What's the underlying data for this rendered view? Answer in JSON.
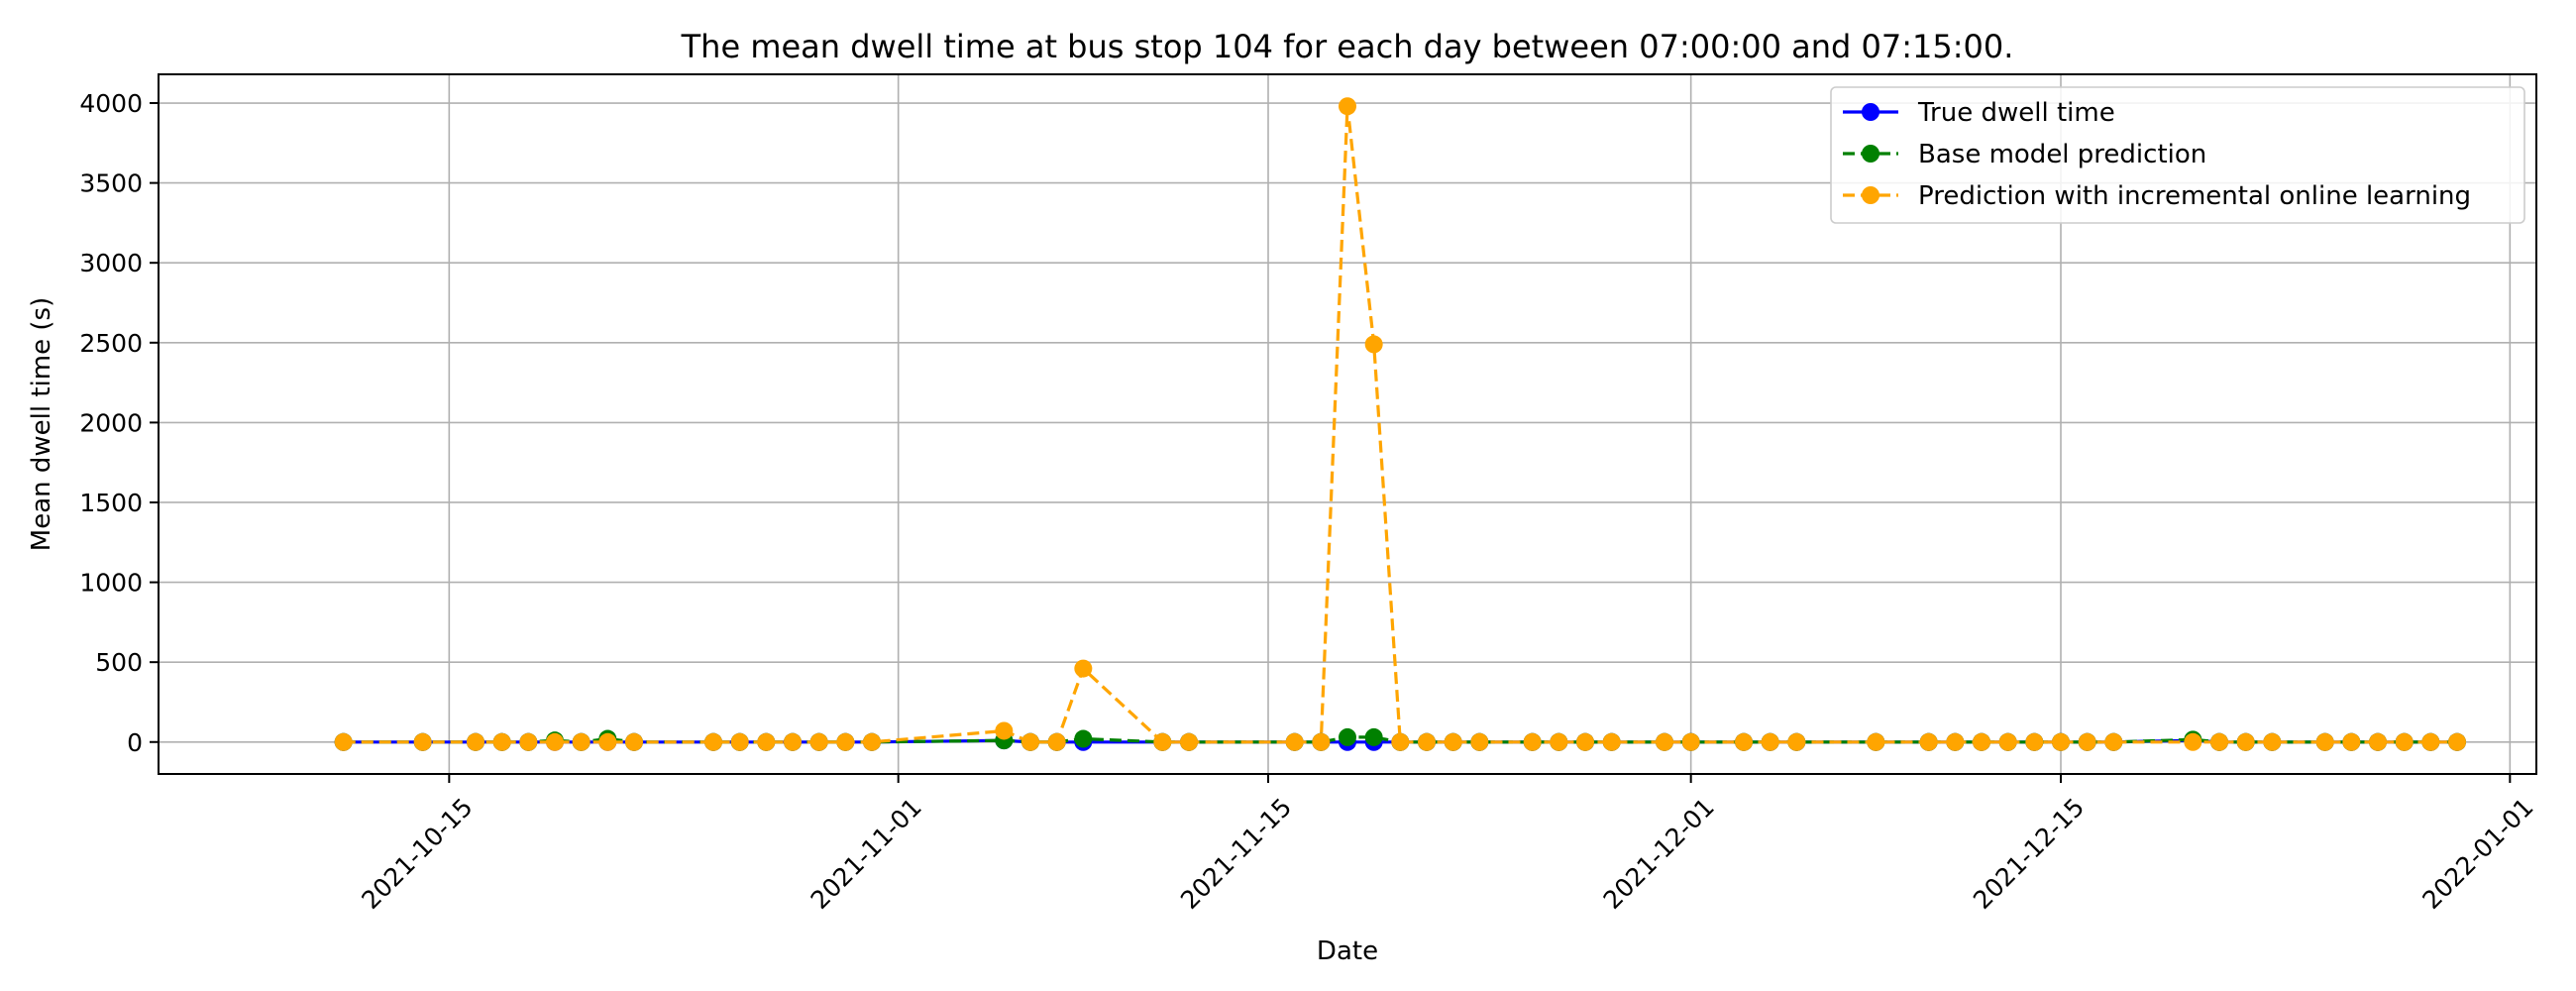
{
  "chart_data": {
    "type": "line",
    "title": "The mean dwell time at bus stop 104 for each day between 07:00:00 and 07:15:00.",
    "xlabel": "Date",
    "ylabel": "Mean dwell time (s)",
    "xlim": [
      "2021-10-04",
      "2022-01-02"
    ],
    "ylim": [
      -200,
      4180
    ],
    "x_ticks": [
      "2021-10-15",
      "2021-11-01",
      "2021-11-15",
      "2021-12-01",
      "2021-12-15",
      "2022-01-01"
    ],
    "y_ticks": [
      0,
      500,
      1000,
      1500,
      2000,
      2500,
      3000,
      3500,
      4000
    ],
    "grid": true,
    "legend_position": "top-right",
    "dates": [
      "2021-10-11",
      "2021-10-14",
      "2021-10-16",
      "2021-10-17",
      "2021-10-18",
      "2021-10-19",
      "2021-10-20",
      "2021-10-21",
      "2021-10-22",
      "2021-10-25",
      "2021-10-26",
      "2021-10-27",
      "2021-10-28",
      "2021-10-29",
      "2021-10-30",
      "2021-10-31",
      "2021-11-05",
      "2021-11-06",
      "2021-11-07",
      "2021-11-08",
      "2021-11-11",
      "2021-11-12",
      "2021-11-16",
      "2021-11-17",
      "2021-11-18",
      "2021-11-19",
      "2021-11-20",
      "2021-11-21",
      "2021-11-22",
      "2021-11-23",
      "2021-11-25",
      "2021-11-26",
      "2021-11-27",
      "2021-11-28",
      "2021-11-30",
      "2021-12-01",
      "2021-12-03",
      "2021-12-04",
      "2021-12-05",
      "2021-12-08",
      "2021-12-10",
      "2021-12-11",
      "2021-12-12",
      "2021-12-13",
      "2021-12-14",
      "2021-12-15",
      "2021-12-16",
      "2021-12-17",
      "2021-12-20",
      "2021-12-21",
      "2021-12-22",
      "2021-12-23",
      "2021-12-25",
      "2021-12-26",
      "2021-12-27",
      "2021-12-28",
      "2021-12-29",
      "2021-12-30"
    ],
    "series": [
      {
        "name": "True dwell time",
        "color": "#0000ff",
        "line_style": "solid",
        "values": [
          0,
          0,
          0,
          0,
          0,
          0,
          0,
          0,
          0,
          0,
          0,
          0,
          0,
          0,
          0,
          0,
          10,
          0,
          0,
          0,
          0,
          0,
          0,
          0,
          0,
          0,
          0,
          0,
          0,
          0,
          0,
          0,
          0,
          0,
          0,
          0,
          0,
          0,
          0,
          0,
          0,
          0,
          0,
          0,
          0,
          0,
          0,
          0,
          10,
          0,
          0,
          0,
          0,
          0,
          0,
          0,
          0,
          0
        ]
      },
      {
        "name": "Base model prediction",
        "color": "#008000",
        "line_style": "dashed",
        "values": [
          0,
          0,
          0,
          0,
          0,
          10,
          0,
          20,
          0,
          0,
          0,
          0,
          0,
          0,
          0,
          0,
          10,
          0,
          0,
          20,
          0,
          0,
          0,
          0,
          30,
          30,
          0,
          0,
          0,
          0,
          0,
          0,
          0,
          0,
          0,
          0,
          0,
          0,
          0,
          0,
          0,
          0,
          0,
          0,
          0,
          0,
          0,
          0,
          15,
          0,
          0,
          0,
          0,
          0,
          0,
          0,
          0,
          0
        ]
      },
      {
        "name": "Prediction with incremental online learning",
        "color": "#ffa500",
        "line_style": "dashed",
        "values": [
          0,
          0,
          0,
          0,
          0,
          0,
          0,
          0,
          0,
          0,
          0,
          0,
          0,
          0,
          0,
          0,
          70,
          0,
          0,
          460,
          0,
          0,
          0,
          0,
          3980,
          2490,
          0,
          0,
          0,
          0,
          0,
          0,
          0,
          0,
          0,
          0,
          0,
          0,
          0,
          0,
          0,
          0,
          0,
          0,
          0,
          0,
          0,
          0,
          0,
          0,
          0,
          0,
          0,
          0,
          0,
          0,
          0,
          0
        ]
      }
    ]
  }
}
